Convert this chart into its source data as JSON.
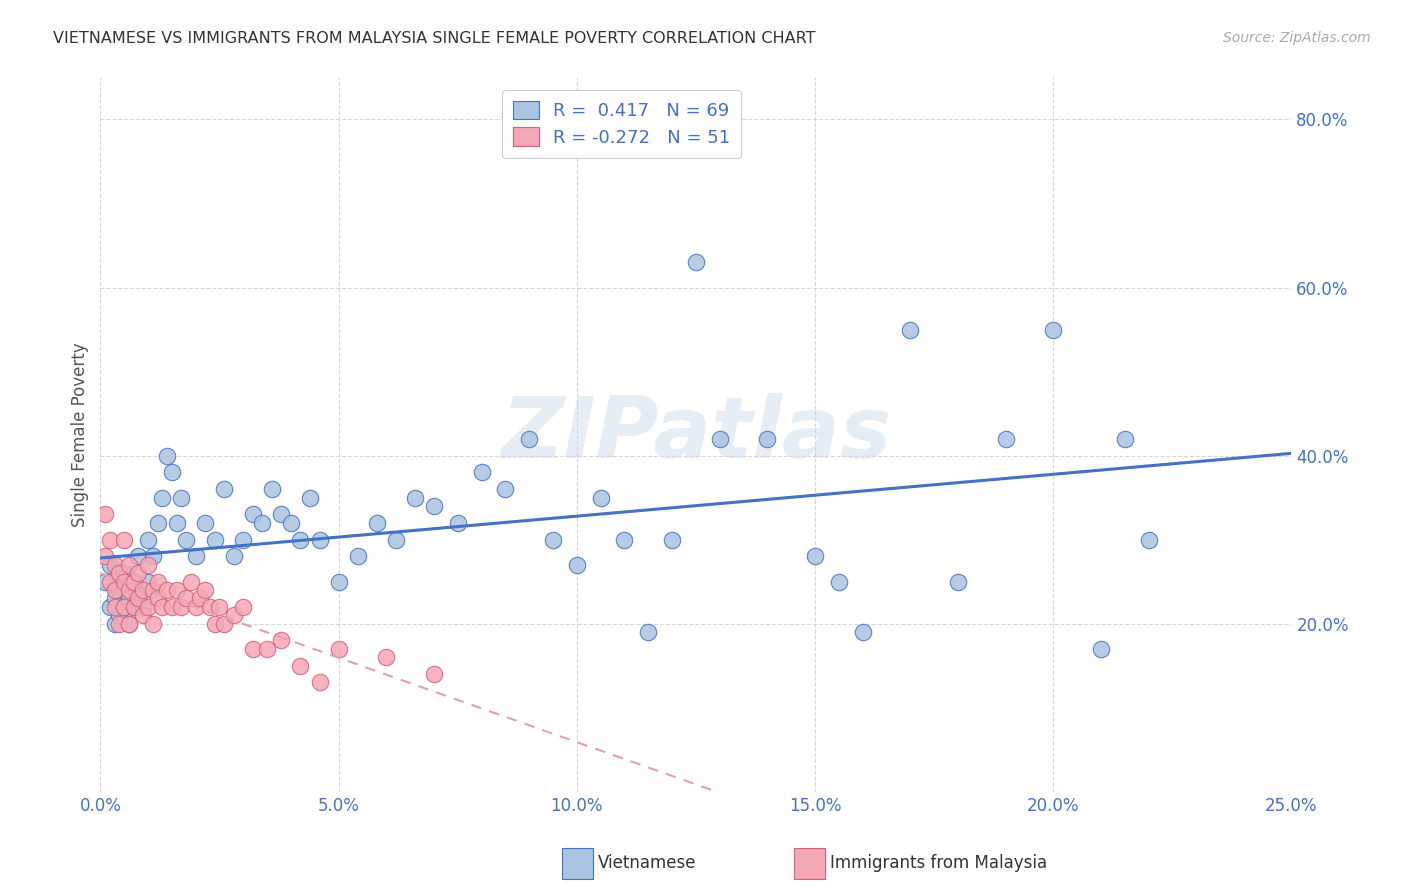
{
  "title": "VIETNAMESE VS IMMIGRANTS FROM MALAYSIA SINGLE FEMALE POVERTY CORRELATION CHART",
  "source": "Source: ZipAtlas.com",
  "ylabel": "Single Female Poverty",
  "xlim": [
    0.0,
    0.25
  ],
  "ylim": [
    0.0,
    0.85
  ],
  "ytick_vals": [
    0.0,
    0.2,
    0.4,
    0.6,
    0.8
  ],
  "xtick_vals": [
    0.0,
    0.05,
    0.1,
    0.15,
    0.2,
    0.25
  ],
  "ytick_labels": [
    "",
    "20.0%",
    "40.0%",
    "60.0%",
    "80.0%"
  ],
  "xtick_labels": [
    "0.0%",
    "5.0%",
    "10.0%",
    "15.0%",
    "20.0%",
    "25.0%"
  ],
  "r_vietnamese": 0.417,
  "n_vietnamese": 69,
  "r_malaysia": -0.272,
  "n_malaysia": 51,
  "color_vietnamese_fill": "#a8c4e0",
  "color_vietnamese_edge": "#4472c4",
  "color_malaysia_fill": "#f4a7b5",
  "color_malaysia_edge": "#d4607a",
  "color_line_vietnamese": "#4472c4",
  "color_line_malaysia": "#e0a0b0",
  "color_text_blue": "#4472c4",
  "color_title": "#333333",
  "background_color": "#ffffff",
  "watermark_text": "ZIPatlas",
  "legend_label_vietnamese": "Vietnamese",
  "legend_label_malaysia": "Immigrants from Malaysia",
  "viet_x": [
    0.001,
    0.002,
    0.002,
    0.003,
    0.003,
    0.004,
    0.004,
    0.005,
    0.005,
    0.006,
    0.006,
    0.007,
    0.007,
    0.008,
    0.008,
    0.009,
    0.01,
    0.01,
    0.011,
    0.012,
    0.013,
    0.014,
    0.015,
    0.016,
    0.017,
    0.018,
    0.02,
    0.022,
    0.024,
    0.026,
    0.028,
    0.03,
    0.032,
    0.034,
    0.036,
    0.038,
    0.04,
    0.042,
    0.044,
    0.046,
    0.05,
    0.054,
    0.058,
    0.062,
    0.066,
    0.07,
    0.075,
    0.08,
    0.085,
    0.09,
    0.095,
    0.1,
    0.105,
    0.11,
    0.115,
    0.12,
    0.125,
    0.13,
    0.14,
    0.15,
    0.155,
    0.16,
    0.17,
    0.18,
    0.19,
    0.2,
    0.21,
    0.215,
    0.22
  ],
  "viet_y": [
    0.25,
    0.22,
    0.27,
    0.23,
    0.2,
    0.21,
    0.24,
    0.22,
    0.26,
    0.23,
    0.2,
    0.25,
    0.22,
    0.23,
    0.28,
    0.22,
    0.25,
    0.3,
    0.28,
    0.32,
    0.35,
    0.4,
    0.38,
    0.32,
    0.35,
    0.3,
    0.28,
    0.32,
    0.3,
    0.36,
    0.28,
    0.3,
    0.33,
    0.32,
    0.36,
    0.33,
    0.32,
    0.3,
    0.35,
    0.3,
    0.25,
    0.28,
    0.32,
    0.3,
    0.35,
    0.34,
    0.32,
    0.38,
    0.36,
    0.42,
    0.3,
    0.27,
    0.35,
    0.3,
    0.19,
    0.3,
    0.63,
    0.42,
    0.42,
    0.28,
    0.25,
    0.19,
    0.55,
    0.25,
    0.42,
    0.55,
    0.17,
    0.42,
    0.3
  ],
  "mal_x": [
    0.001,
    0.001,
    0.002,
    0.002,
    0.003,
    0.003,
    0.003,
    0.004,
    0.004,
    0.005,
    0.005,
    0.005,
    0.006,
    0.006,
    0.006,
    0.007,
    0.007,
    0.008,
    0.008,
    0.009,
    0.009,
    0.01,
    0.01,
    0.011,
    0.011,
    0.012,
    0.012,
    0.013,
    0.014,
    0.015,
    0.016,
    0.017,
    0.018,
    0.019,
    0.02,
    0.021,
    0.022,
    0.023,
    0.024,
    0.025,
    0.026,
    0.028,
    0.03,
    0.032,
    0.035,
    0.038,
    0.042,
    0.046,
    0.05,
    0.06,
    0.07
  ],
  "mal_y": [
    0.33,
    0.28,
    0.3,
    0.25,
    0.27,
    0.24,
    0.22,
    0.26,
    0.2,
    0.25,
    0.22,
    0.3,
    0.24,
    0.2,
    0.27,
    0.25,
    0.22,
    0.23,
    0.26,
    0.24,
    0.21,
    0.22,
    0.27,
    0.24,
    0.2,
    0.23,
    0.25,
    0.22,
    0.24,
    0.22,
    0.24,
    0.22,
    0.23,
    0.25,
    0.22,
    0.23,
    0.24,
    0.22,
    0.2,
    0.22,
    0.2,
    0.21,
    0.22,
    0.17,
    0.17,
    0.18,
    0.15,
    0.13,
    0.17,
    0.16,
    0.14
  ]
}
